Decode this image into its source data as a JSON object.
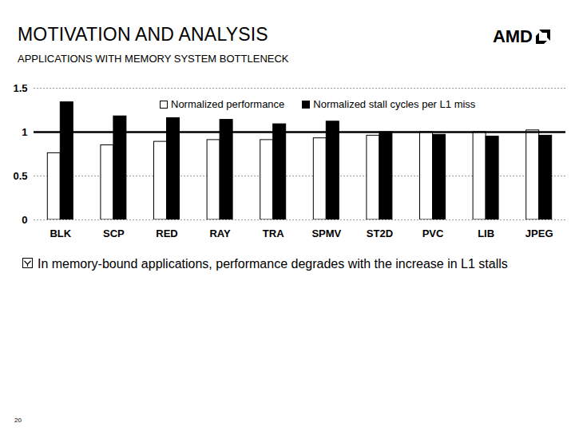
{
  "header": {
    "title": "MOTIVATION AND ANALYSIS",
    "subtitle": "APPLICATIONS WITH MEMORY SYSTEM BOTTLENECK",
    "logo": "AMD"
  },
  "chart_data": {
    "type": "bar",
    "categories": [
      "BLK",
      "SCP",
      "RED",
      "RAY",
      "TRA",
      "SPMV",
      "ST2D",
      "PVC",
      "LIB",
      "JPEG"
    ],
    "series": [
      {
        "name": "Normalized performance",
        "color": "#ffffff",
        "values": [
          0.76,
          0.85,
          0.89,
          0.91,
          0.91,
          0.93,
          0.96,
          1.0,
          1.0,
          1.02
        ]
      },
      {
        "name": "Normalized stall cycles per L1 miss",
        "color": "#000000",
        "values": [
          1.34,
          1.18,
          1.16,
          1.14,
          1.09,
          1.12,
          1.0,
          0.97,
          0.95,
          0.96
        ]
      }
    ],
    "ylim": [
      0,
      1.5
    ],
    "yticks": [
      0,
      0.5,
      1,
      1.5
    ],
    "grid": true,
    "legend": "top-right",
    "reference_line": 1
  },
  "bullets": [
    "In memory-bound applications, performance degrades with the increase in L1 stalls"
  ],
  "page_number": "20"
}
